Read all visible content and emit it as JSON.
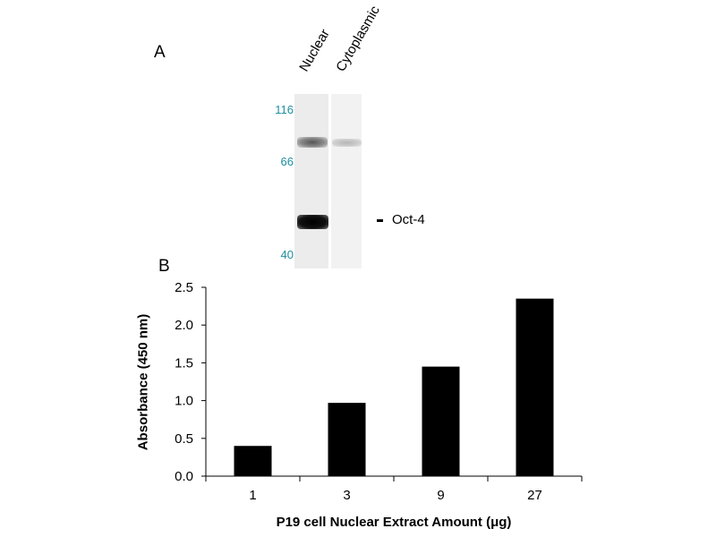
{
  "panel_a": {
    "letter": "A",
    "lanes": [
      "Nuclear",
      "Cytoplasmic"
    ],
    "mw_markers": [
      "116",
      "66",
      "40"
    ],
    "band_label": "Oct-4",
    "marker_color": "#1f8fa0"
  },
  "panel_b": {
    "letter": "B"
  },
  "chart_data": {
    "type": "bar",
    "categories": [
      "1",
      "3",
      "9",
      "27"
    ],
    "values": [
      0.4,
      0.97,
      1.45,
      2.35
    ],
    "ylabel": "Absorbance (450 nm)",
    "xlabel": "P19 cell Nuclear Extract Amount (μg)",
    "yticks": [
      "0.0",
      "0.5",
      "1.0",
      "1.5",
      "2.0",
      "2.5"
    ],
    "ylim": [
      0,
      2.5
    ],
    "bar_color": "#000000",
    "grid": false,
    "legend": "none"
  }
}
